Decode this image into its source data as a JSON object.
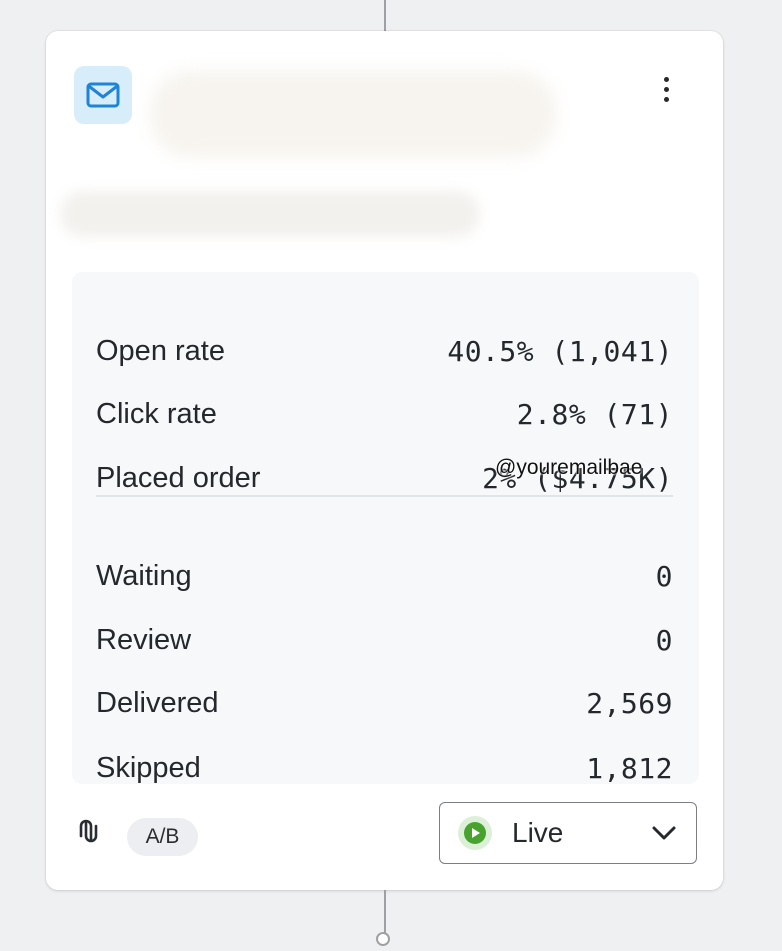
{
  "card": {
    "icons": {
      "email": "mail-icon",
      "more": "more-vertical-icon",
      "link": "link-icon",
      "chevron": "chevron-down-icon",
      "live": "play-circle-icon"
    },
    "colors": {
      "email_badge_bg": "#d7edfa",
      "email_icon": "#1f83d6",
      "live_icon": "#47a32d",
      "live_badge_bg": "#dcefd7"
    }
  },
  "stats": {
    "performance": [
      {
        "label": "Open rate",
        "value": "40.5% (1,041)"
      },
      {
        "label": "Click rate",
        "value": "2.8% (71)"
      },
      {
        "label": "Placed order",
        "value": "2% ($4.75K)"
      }
    ],
    "status": [
      {
        "label": "Waiting",
        "value": "0"
      },
      {
        "label": "Review",
        "value": "0"
      },
      {
        "label": "Delivered",
        "value": "2,569"
      },
      {
        "label": "Skipped",
        "value": "1,812"
      }
    ]
  },
  "footer": {
    "ab_label": "A/B",
    "status": "Live"
  },
  "watermark": "@youremailbae"
}
